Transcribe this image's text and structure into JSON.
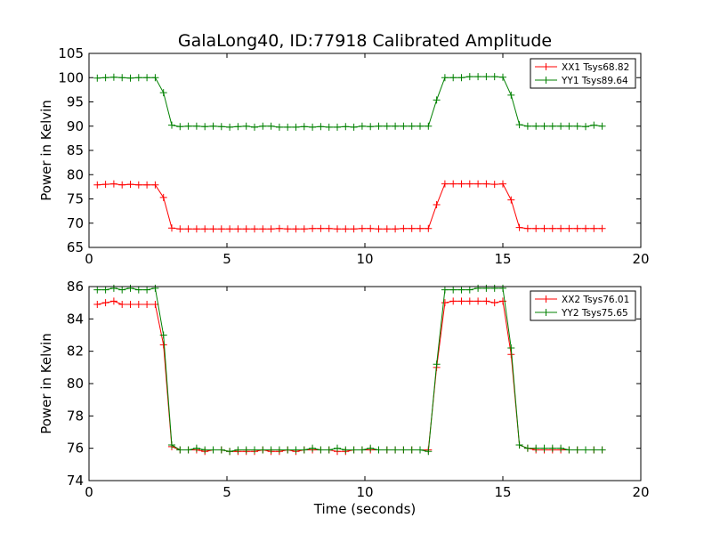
{
  "figure": {
    "title": "GalaLong40, ID:77918 Calibrated Amplitude",
    "xlabel": "Time (seconds)"
  },
  "chart_data": [
    {
      "type": "line",
      "title": "GalaLong40, ID:77918 Calibrated Amplitude",
      "xlabel": "",
      "ylabel": "Power in Kelvin",
      "xlim": [
        0,
        20
      ],
      "ylim": [
        65,
        105
      ],
      "xticks": [
        "0",
        "5",
        "10",
        "15",
        "20"
      ],
      "yticks": [
        "65",
        "70",
        "75",
        "80",
        "85",
        "90",
        "95",
        "100",
        "105"
      ],
      "legend_position": "top-right",
      "marker": "+",
      "x": [
        0.3,
        0.6,
        0.9,
        1.2,
        1.5,
        1.8,
        2.1,
        2.4,
        2.7,
        3.0,
        3.3,
        3.6,
        3.9,
        4.2,
        4.5,
        4.8,
        5.1,
        5.4,
        5.7,
        6.0,
        6.3,
        6.6,
        6.9,
        7.2,
        7.5,
        7.8,
        8.1,
        8.4,
        8.7,
        9.0,
        9.3,
        9.6,
        9.9,
        10.2,
        10.5,
        10.8,
        11.1,
        11.4,
        11.7,
        12.0,
        12.3,
        12.6,
        12.9,
        13.2,
        13.5,
        13.8,
        14.1,
        14.4,
        14.7,
        15.0,
        15.3,
        15.6,
        15.9,
        16.2,
        16.5,
        16.8,
        17.1,
        17.4,
        17.7,
        18.0,
        18.3,
        18.6
      ],
      "series": [
        {
          "name": "XX1 Tsys68.82",
          "color": "#ff0000",
          "values": [
            77.9,
            78.0,
            78.1,
            77.9,
            78.0,
            77.9,
            77.9,
            77.9,
            75.3,
            69.0,
            68.8,
            68.8,
            68.8,
            68.8,
            68.8,
            68.8,
            68.8,
            68.8,
            68.8,
            68.8,
            68.8,
            68.8,
            68.9,
            68.8,
            68.8,
            68.8,
            68.9,
            68.9,
            68.9,
            68.8,
            68.8,
            68.8,
            68.9,
            68.9,
            68.8,
            68.8,
            68.8,
            68.9,
            68.9,
            68.9,
            68.9,
            73.8,
            78.1,
            78.1,
            78.1,
            78.1,
            78.1,
            78.1,
            78.0,
            78.1,
            74.8,
            69.1,
            68.9,
            68.9,
            68.9,
            68.9,
            68.9,
            68.9,
            68.9,
            68.9,
            68.9,
            68.9
          ]
        },
        {
          "name": "YY1 Tsys89.64",
          "color": "#008000",
          "values": [
            99.9,
            100.0,
            100.1,
            100.0,
            99.9,
            100.0,
            100.0,
            100.0,
            96.9,
            90.2,
            89.9,
            90.0,
            90.0,
            89.9,
            90.0,
            89.9,
            89.8,
            89.9,
            90.0,
            89.8,
            90.0,
            90.0,
            89.8,
            89.8,
            89.8,
            89.9,
            89.8,
            89.9,
            89.8,
            89.8,
            89.9,
            89.8,
            90.0,
            89.9,
            90.0,
            90.0,
            90.0,
            90.0,
            90.0,
            90.0,
            90.0,
            95.4,
            100.0,
            100.0,
            100.0,
            100.2,
            100.2,
            100.2,
            100.2,
            100.1,
            96.4,
            90.3,
            90.0,
            90.0,
            90.0,
            90.0,
            90.0,
            90.0,
            90.0,
            89.9,
            90.2,
            90.0
          ]
        }
      ]
    },
    {
      "type": "line",
      "title": "",
      "xlabel": "Time (seconds)",
      "ylabel": "Power in Kelvin",
      "xlim": [
        0,
        20
      ],
      "ylim": [
        74,
        86
      ],
      "xticks": [
        "0",
        "5",
        "10",
        "15",
        "20"
      ],
      "yticks": [
        "74",
        "76",
        "78",
        "80",
        "82",
        "84",
        "86"
      ],
      "legend_position": "top-right",
      "marker": "+",
      "x": [
        0.3,
        0.6,
        0.9,
        1.2,
        1.5,
        1.8,
        2.1,
        2.4,
        2.7,
        3.0,
        3.3,
        3.6,
        3.9,
        4.2,
        4.5,
        4.8,
        5.1,
        5.4,
        5.7,
        6.0,
        6.3,
        6.6,
        6.9,
        7.2,
        7.5,
        7.8,
        8.1,
        8.4,
        8.7,
        9.0,
        9.3,
        9.6,
        9.9,
        10.2,
        10.5,
        10.8,
        11.1,
        11.4,
        11.7,
        12.0,
        12.3,
        12.6,
        12.9,
        13.2,
        13.5,
        13.8,
        14.1,
        14.4,
        14.7,
        15.0,
        15.3,
        15.6,
        15.9,
        16.2,
        16.5,
        16.8,
        17.1,
        17.4,
        17.7,
        18.0,
        18.3,
        18.6
      ],
      "series": [
        {
          "name": "XX2 Tsys76.01",
          "color": "#ff0000",
          "values": [
            84.9,
            85.0,
            85.1,
            84.9,
            84.9,
            84.9,
            84.9,
            84.9,
            82.4,
            76.1,
            75.9,
            75.9,
            75.9,
            75.8,
            75.9,
            75.9,
            75.8,
            75.8,
            75.8,
            75.8,
            75.9,
            75.8,
            75.8,
            75.9,
            75.8,
            75.9,
            75.9,
            75.9,
            75.9,
            75.8,
            75.8,
            75.9,
            75.9,
            75.9,
            75.9,
            75.9,
            75.9,
            75.9,
            75.9,
            75.9,
            75.9,
            81.0,
            85.0,
            85.1,
            85.1,
            85.1,
            85.1,
            85.1,
            85.0,
            85.1,
            81.8,
            76.2,
            76.0,
            75.9,
            75.9,
            75.9,
            75.9,
            75.9,
            75.9,
            75.9,
            75.9,
            75.9
          ]
        },
        {
          "name": "YY2 Tsys75.65",
          "color": "#008000",
          "values": [
            85.8,
            85.8,
            85.9,
            85.8,
            85.9,
            85.8,
            85.8,
            85.9,
            83.0,
            76.2,
            75.9,
            75.9,
            76.0,
            75.9,
            75.9,
            75.9,
            75.8,
            75.9,
            75.9,
            75.9,
            75.9,
            75.9,
            75.9,
            75.9,
            75.9,
            75.9,
            76.0,
            75.9,
            75.9,
            76.0,
            75.9,
            75.9,
            75.9,
            76.0,
            75.9,
            75.9,
            75.9,
            75.9,
            75.9,
            75.9,
            75.8,
            81.2,
            85.8,
            85.8,
            85.8,
            85.8,
            85.9,
            85.9,
            85.9,
            85.9,
            82.2,
            76.2,
            76.0,
            76.0,
            76.0,
            76.0,
            76.0,
            75.9,
            75.9,
            75.9,
            75.9,
            75.9
          ]
        }
      ]
    }
  ]
}
